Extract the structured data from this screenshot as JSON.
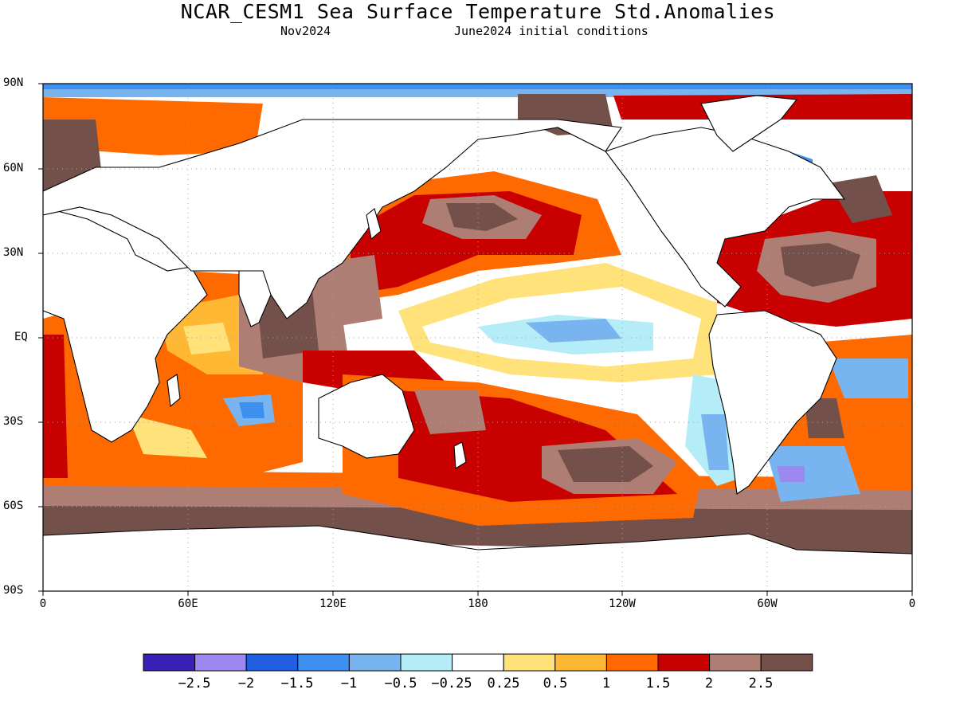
{
  "header": {
    "title": "NCAR_CESM1 Sea Surface Temperature Std.Anomalies",
    "valid_month": "Nov2024",
    "init": "June2024 initial conditions"
  },
  "axes": {
    "lat_labels": [
      "90N",
      "60N",
      "30N",
      "EQ",
      "30S",
      "60S",
      "90S"
    ],
    "lon_labels": [
      "0",
      "60E",
      "120E",
      "180",
      "120W",
      "60W",
      "0"
    ]
  },
  "colorbar": {
    "labels": [
      "−2.5",
      "−2",
      "−1.5",
      "−1",
      "−0.5",
      "−0.25",
      "0.25",
      "0.5",
      "1",
      "1.5",
      "2",
      "2.5"
    ],
    "colors": [
      "#3a1fb4",
      "#9c88ee",
      "#1f5fe0",
      "#3d8ff0",
      "#78b4f0",
      "#b4ecf8",
      "#ffffff",
      "#ffe27a",
      "#ffb834",
      "#ff6a00",
      "#c80000",
      "#ae7e74",
      "#74504a"
    ]
  },
  "palette": {
    "land": "#ffffff",
    "coast": "#000000",
    "grid": "#a0a0a0"
  }
}
